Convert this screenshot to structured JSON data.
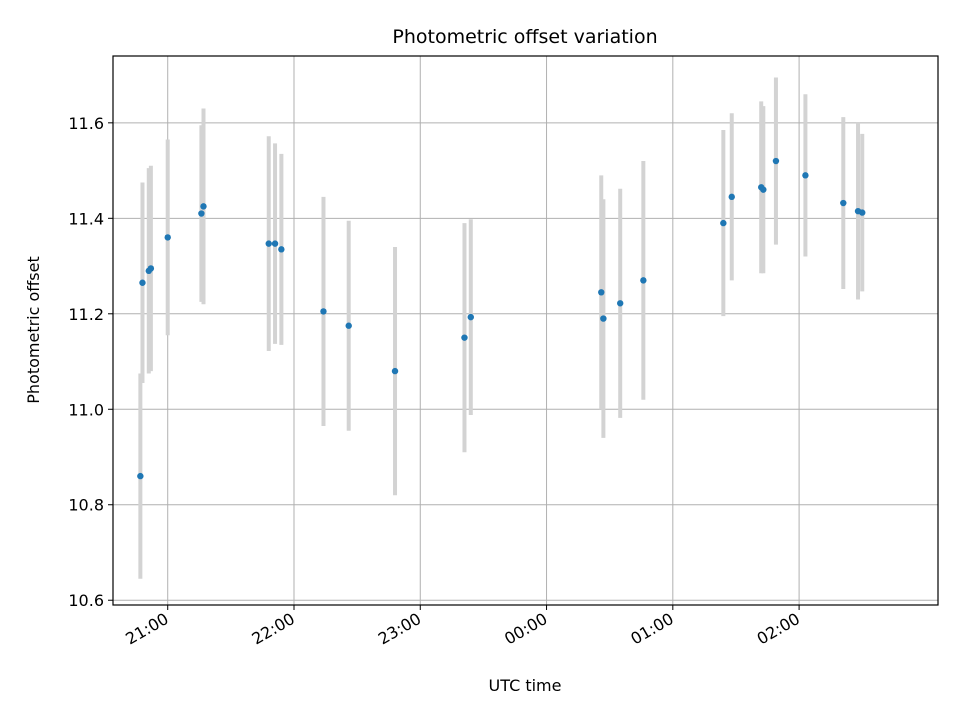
{
  "chart_data": {
    "type": "scatter",
    "title": "Photometric offset variation",
    "xlabel": "UTC time",
    "ylabel": "Photometric offset",
    "x_axis_kind": "time",
    "xlim": [
      "20:34",
      "03:06"
    ],
    "ylim": [
      10.59,
      11.74
    ],
    "x_ticks": [
      "21:00",
      "22:00",
      "23:00",
      "00:00",
      "01:00",
      "02:00"
    ],
    "y_ticks": [
      10.6,
      10.8,
      11.0,
      11.2,
      11.4,
      11.6
    ],
    "grid": true,
    "errorbar_color": "#d3d3d3",
    "marker_color": "#1f77b4",
    "points": [
      {
        "time": "20:47",
        "y": 10.86,
        "err": 0.215
      },
      {
        "time": "20:48",
        "y": 11.265,
        "err": 0.21
      },
      {
        "time": "20:51",
        "y": 11.29,
        "err": 0.215
      },
      {
        "time": "20:52",
        "y": 11.295,
        "err": 0.215
      },
      {
        "time": "21:00",
        "y": 11.36,
        "err": 0.205
      },
      {
        "time": "21:16",
        "y": 11.41,
        "err": 0.185
      },
      {
        "time": "21:17",
        "y": 11.425,
        "err": 0.205
      },
      {
        "time": "21:48",
        "y": 11.347,
        "err": 0.225
      },
      {
        "time": "21:51",
        "y": 11.347,
        "err": 0.21
      },
      {
        "time": "21:54",
        "y": 11.335,
        "err": 0.2
      },
      {
        "time": "22:14",
        "y": 11.205,
        "err": 0.24
      },
      {
        "time": "22:26",
        "y": 11.175,
        "err": 0.22
      },
      {
        "time": "22:48",
        "y": 11.08,
        "err": 0.26
      },
      {
        "time": "23:21",
        "y": 11.15,
        "err": 0.24
      },
      {
        "time": "23:24",
        "y": 11.193,
        "err": 0.205
      },
      {
        "time": "00:26",
        "y": 11.245,
        "err": 0.245
      },
      {
        "time": "00:27",
        "y": 11.19,
        "err": 0.25
      },
      {
        "time": "00:35",
        "y": 11.222,
        "err": 0.24
      },
      {
        "time": "00:46",
        "y": 11.27,
        "err": 0.25
      },
      {
        "time": "01:24",
        "y": 11.39,
        "err": 0.195
      },
      {
        "time": "01:28",
        "y": 11.445,
        "err": 0.175
      },
      {
        "time": "01:42",
        "y": 11.465,
        "err": 0.18
      },
      {
        "time": "01:43",
        "y": 11.46,
        "err": 0.175
      },
      {
        "time": "01:49",
        "y": 11.52,
        "err": 0.175
      },
      {
        "time": "02:03",
        "y": 11.49,
        "err": 0.17
      },
      {
        "time": "02:21",
        "y": 11.432,
        "err": 0.18
      },
      {
        "time": "02:28",
        "y": 11.415,
        "err": 0.185
      },
      {
        "time": "02:30",
        "y": 11.412,
        "err": 0.165
      }
    ]
  }
}
